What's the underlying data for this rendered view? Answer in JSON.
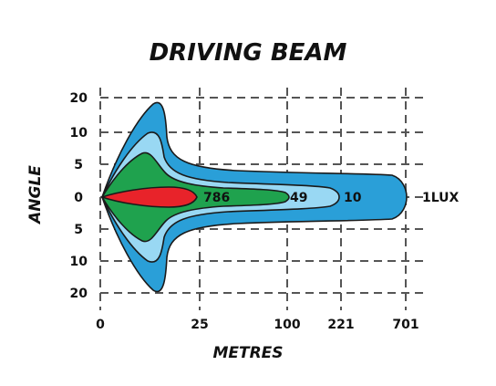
{
  "chart_data": {
    "type": "area",
    "title": "DRIVING BEAM",
    "xlabel": "METRES",
    "ylabel": "ANGLE",
    "x_ticks": [
      "0",
      "25",
      "100",
      "221",
      "701"
    ],
    "y_ticks": [
      "20",
      "10",
      "5",
      "0",
      "5",
      "10",
      "20"
    ],
    "grid": true,
    "series": [
      {
        "name": "1LUX",
        "reach_metres": 701,
        "max_angle_deg": 20,
        "color": "#2a9fd8"
      },
      {
        "name": "10",
        "reach_metres": 221,
        "max_angle_deg": 10,
        "color": "#99d8f3"
      },
      {
        "name": "49",
        "reach_metres": 100,
        "max_angle_deg": 5,
        "color": "#1fa24e"
      },
      {
        "name": "786",
        "reach_metres": 25,
        "max_angle_deg": 1,
        "color": "#e8232a"
      }
    ]
  }
}
